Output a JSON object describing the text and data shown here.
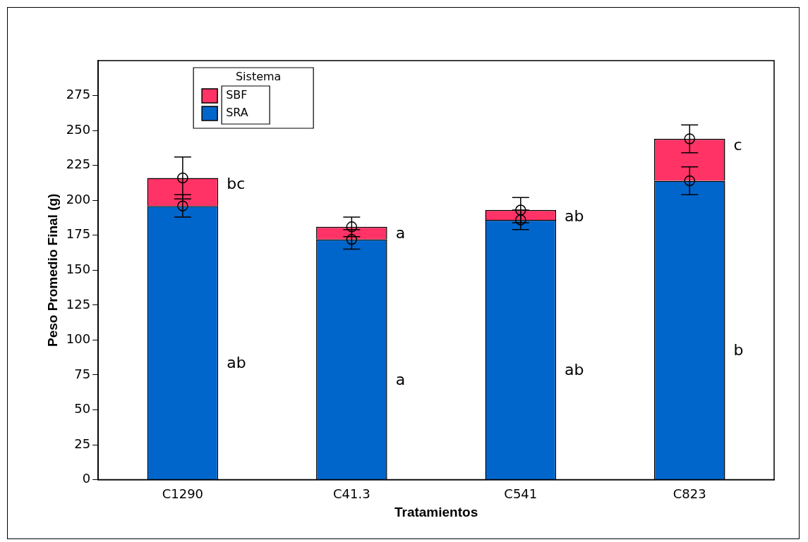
{
  "chart_data": {
    "type": "bar",
    "stacked": true,
    "xlabel": "Tratamientos",
    "ylabel": "Peso Promedio Final (g)",
    "legend_title": "Sistema",
    "legend": "top left",
    "grid": false,
    "marker": "circle",
    "categories": [
      "C1290",
      "C41.3",
      "C541",
      "C823"
    ],
    "series": [
      {
        "name": "SRA",
        "color": "#0066cc",
        "values": [
          196,
          172,
          186,
          214
        ]
      },
      {
        "name": "SBF",
        "color": "#ff3366",
        "values": [
          20,
          9,
          7,
          30
        ]
      },
      {
        "type": "scatter",
        "color": "#000000",
        "x": [
          "C1290",
          "C41.3",
          "C541",
          "C823"
        ],
        "values": [
          196,
          172,
          186,
          214
        ],
        "errors": [
          8,
          7,
          7,
          10
        ]
      },
      {
        "type": "scatter",
        "color": "#000000",
        "x": [
          "C1290",
          "C41.3",
          "C541",
          "C823"
        ],
        "values": [
          216,
          181,
          193,
          244
        ],
        "errors": [
          15,
          7,
          9,
          10
        ]
      }
    ],
    "ylim": [
      0,
      300
    ],
    "yticks": [
      0,
      25,
      50,
      75,
      100,
      125,
      150,
      175,
      200,
      225,
      250,
      275
    ],
    "annotations": [
      "bc",
      "ab",
      "a",
      "a",
      "ab",
      "ab",
      "c",
      "b"
    ]
  }
}
